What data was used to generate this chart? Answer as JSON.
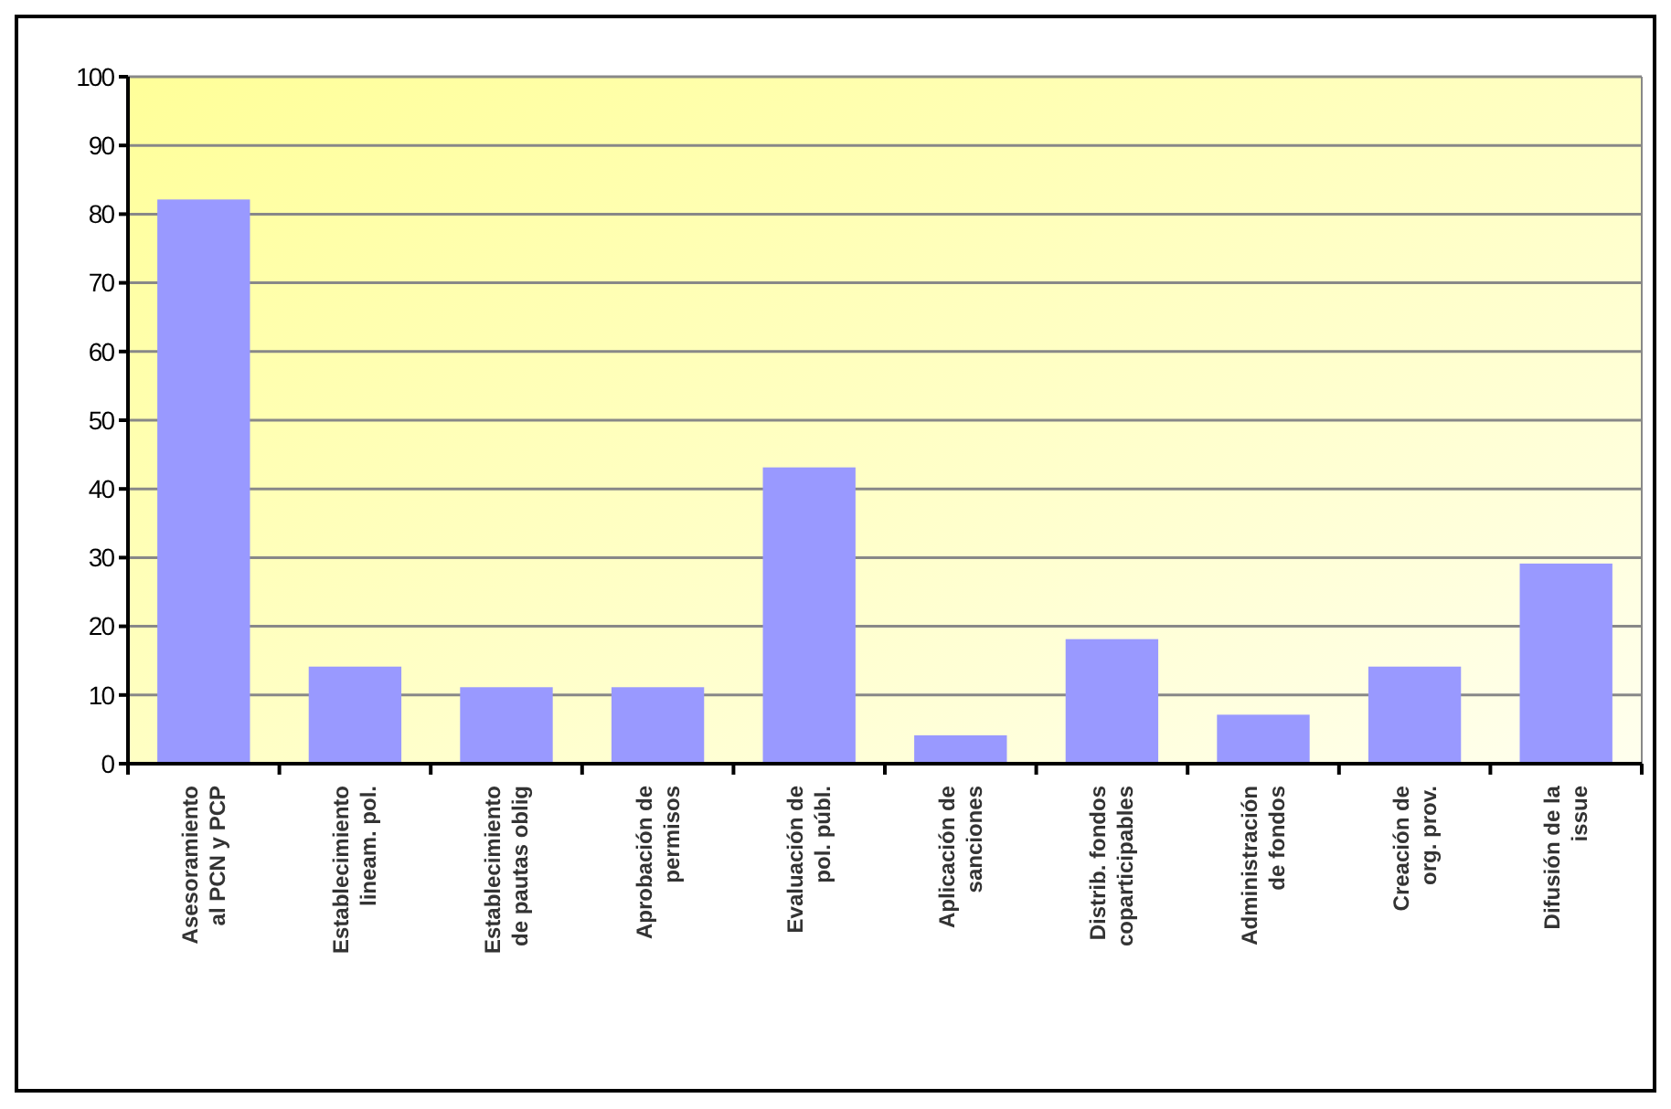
{
  "chart_data": {
    "type": "bar",
    "categories": [
      "Asesoramiento\nal PCN y PCP",
      "Establecimiento\nlineam. pol.",
      "Establecimiento\nde pautas oblig",
      "Aprobación de\npermisos",
      "Evaluación de\npol. públ.",
      "Aplicación de\nsanciones",
      "Distrib. fondos\ncoparticipables",
      "Administración\nde fondos",
      "Creación de\norg. prov.",
      "Difusión de la\nissue"
    ],
    "values": [
      82,
      14,
      11,
      11,
      43,
      4,
      18,
      7,
      14,
      29
    ],
    "color": "#9999ff",
    "ylim": [
      0,
      100
    ],
    "yticks": [
      0,
      10,
      20,
      30,
      40,
      50,
      60,
      70,
      80,
      90,
      100
    ],
    "grid": "y"
  }
}
